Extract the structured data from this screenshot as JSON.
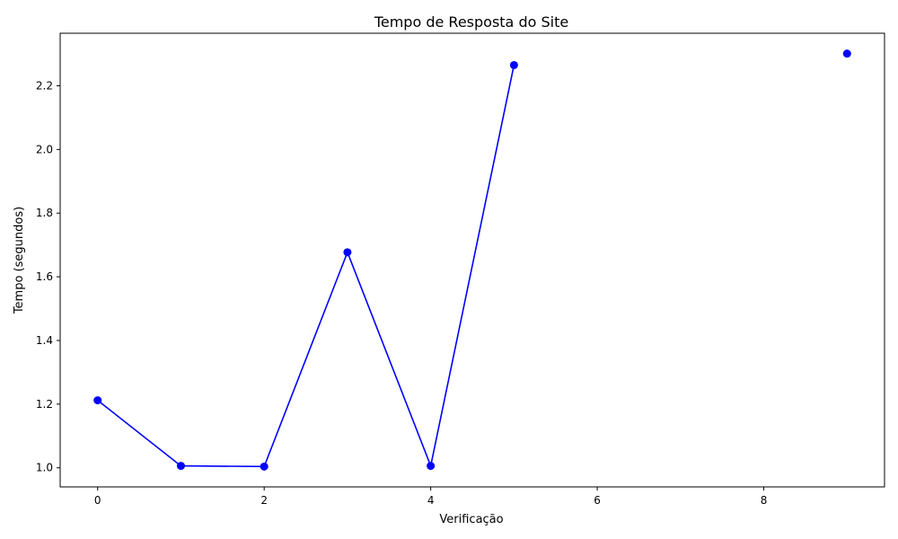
{
  "chart_data": {
    "type": "line",
    "title": "Tempo de Resposta do Site",
    "xlabel": "Verificação",
    "ylabel": "Tempo (segundos)",
    "xlim": [
      -0.45,
      9.45
    ],
    "ylim": [
      0.94,
      2.365
    ],
    "x_ticks": [
      0,
      2,
      4,
      6,
      8
    ],
    "y_ticks": [
      1.0,
      1.2,
      1.4,
      1.6,
      1.8,
      2.0,
      2.2
    ],
    "grid": false,
    "series": [
      {
        "color": "#0000ff",
        "marker": "circle",
        "points": [
          {
            "x": 0,
            "y": 1.212
          },
          {
            "x": 1,
            "y": 1.006
          },
          {
            "x": 2,
            "y": 1.004
          },
          {
            "x": 3,
            "y": 1.677
          },
          {
            "x": 4,
            "y": 1.006
          },
          {
            "x": 5,
            "y": 2.265
          },
          {
            "x": 6,
            "y": null
          },
          {
            "x": 7,
            "y": null
          },
          {
            "x": 8,
            "y": null
          },
          {
            "x": 9,
            "y": 2.301
          }
        ]
      }
    ]
  }
}
